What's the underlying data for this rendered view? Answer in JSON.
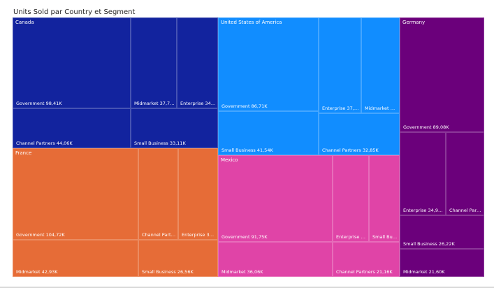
{
  "chart_data": {
    "type": "treemap",
    "title": "Units Sold par Country et Segment",
    "unit_suffix": "K",
    "countries": [
      {
        "name": "Canada",
        "color": "#12239E",
        "segments": [
          {
            "name": "Government",
            "value": 98.41,
            "label": "Government 98,41K"
          },
          {
            "name": "Channel Partners",
            "value": 44.06,
            "label": "Channel Partners 44,06K"
          },
          {
            "name": "Midmarket",
            "value": 37.77,
            "label": "Midmarket 37,77K"
          },
          {
            "name": "Enterprise",
            "value": 34.08,
            "label": "Enterprise 34,08K"
          },
          {
            "name": "Small Business",
            "value": 33.11,
            "label": "Small Business 33,11K"
          }
        ]
      },
      {
        "name": "United States of America",
        "color": "#118DFF",
        "segments": [
          {
            "name": "Government",
            "value": 86.71,
            "label": "Government 86,71K"
          },
          {
            "name": "Small Business",
            "value": 41.54,
            "label": "Small Business 41,54K"
          },
          {
            "name": "Enterprise",
            "value": 37.71,
            "label": "Enterprise 37,71K"
          },
          {
            "name": "Midmarket",
            "value": 33.8,
            "label": "Midmarket 33,8..."
          },
          {
            "name": "Channel Partners",
            "value": 32.85,
            "label": "Channel Partners 32,85K"
          }
        ]
      },
      {
        "name": "Germany",
        "color": "#6B007B",
        "segments": [
          {
            "name": "Government",
            "value": 89.08,
            "label": "Government 89,08K"
          },
          {
            "name": "Enterprise",
            "value": 34.9,
            "label": "Enterprise 34,90K"
          },
          {
            "name": "Channel Partners",
            "value": 30.0,
            "label": "Channel Partner..."
          },
          {
            "name": "Small Business",
            "value": 26.22,
            "label": "Small Business 26,22K"
          },
          {
            "name": "Midmarket",
            "value": 21.6,
            "label": "Midmarket 21,60K"
          }
        ]
      },
      {
        "name": "France",
        "color": "#E66C37",
        "segments": [
          {
            "name": "Government",
            "value": 104.72,
            "label": "Government 104,72K"
          },
          {
            "name": "Midmarket",
            "value": 42.93,
            "label": "Midmarket 42,93K"
          },
          {
            "name": "Channel Partners",
            "value": 34.0,
            "label": "Channel Partner..."
          },
          {
            "name": "Enterprise",
            "value": 33.22,
            "label": "Enterprise 33,22K"
          },
          {
            "name": "Small Business",
            "value": 26.56,
            "label": "Small Business 26,56K"
          }
        ]
      },
      {
        "name": "Mexico",
        "color": "#E044A7",
        "segments": [
          {
            "name": "Government",
            "value": 91.75,
            "label": "Government 91,75K"
          },
          {
            "name": "Midmarket",
            "value": 36.06,
            "label": "Midmarket 36,06K"
          },
          {
            "name": "Enterprise",
            "value": 28.0,
            "label": "Enterprise 28,..."
          },
          {
            "name": "Small Business",
            "value": 25.0,
            "label": "Small Busine..."
          },
          {
            "name": "Channel Partners",
            "value": 21.16,
            "label": "Channel Partners 21,16K"
          }
        ]
      }
    ]
  }
}
